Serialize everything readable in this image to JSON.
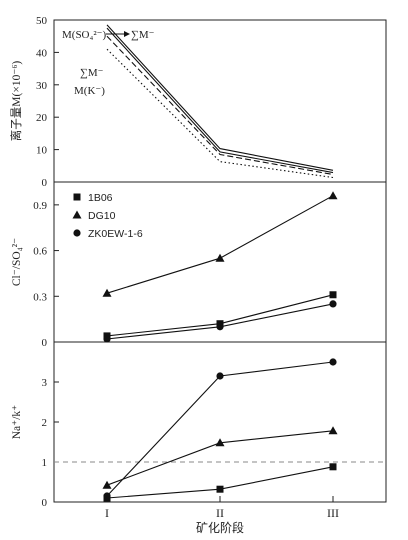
{
  "chart_data": {
    "x_categories": [
      "I",
      "II",
      "III"
    ],
    "xlabel": "矿化阶段",
    "panels": [
      {
        "type": "line",
        "ylabel": "离子量M(×10⁻⁶)",
        "ylim": [
          0,
          50
        ],
        "yticks": [
          0,
          10,
          20,
          30,
          40,
          50
        ],
        "series": [
          {
            "name": "∑M⁻",
            "style": "solid",
            "values": [
              48.5,
              10.3,
              3.6
            ]
          },
          {
            "name": "M(SO₄²⁻)",
            "style": "solid",
            "values": [
              47.5,
              9.3,
              2.9
            ]
          },
          {
            "name": "∑M⁻",
            "style": "dashed",
            "values": [
              45,
              8.5,
              2.3
            ]
          },
          {
            "name": "M(K⁻)",
            "style": "dotted",
            "values": [
              41,
              6.3,
              1.4
            ]
          }
        ],
        "annotations": [
          {
            "text": "M(SO₄²⁻)"
          },
          {
            "text": "∑M⁻"
          },
          {
            "text": "∑M⁻"
          },
          {
            "text": "M(K⁻)"
          }
        ]
      },
      {
        "type": "line",
        "ylabel": "Cl⁻/SO₄²⁻",
        "ylim": [
          0,
          1.05
        ],
        "yticks": [
          0,
          0.3,
          0.6,
          0.9
        ],
        "legend_position": "top-left",
        "series": [
          {
            "name": "1B06",
            "marker": "square",
            "values": [
              0.04,
              0.12,
              0.31
            ]
          },
          {
            "name": "DG10",
            "marker": "triangle",
            "values": [
              0.32,
              0.55,
              0.96
            ]
          },
          {
            "name": "ZK0EW-1-6",
            "marker": "circle",
            "values": [
              0.02,
              0.1,
              0.25
            ]
          }
        ]
      },
      {
        "type": "line",
        "ylabel": "Na⁺/k⁺",
        "ylim": [
          0,
          4
        ],
        "yticks": [
          0,
          1,
          2,
          3
        ],
        "reference_line": 1,
        "series": [
          {
            "name": "1B06",
            "marker": "square",
            "values": [
              0.1,
              0.32,
              0.88
            ]
          },
          {
            "name": "DG10",
            "marker": "triangle",
            "values": [
              0.42,
              1.48,
              1.78
            ]
          },
          {
            "name": "ZK0EW-1-6",
            "marker": "circle",
            "values": [
              0.15,
              3.15,
              3.5
            ]
          }
        ]
      }
    ]
  }
}
